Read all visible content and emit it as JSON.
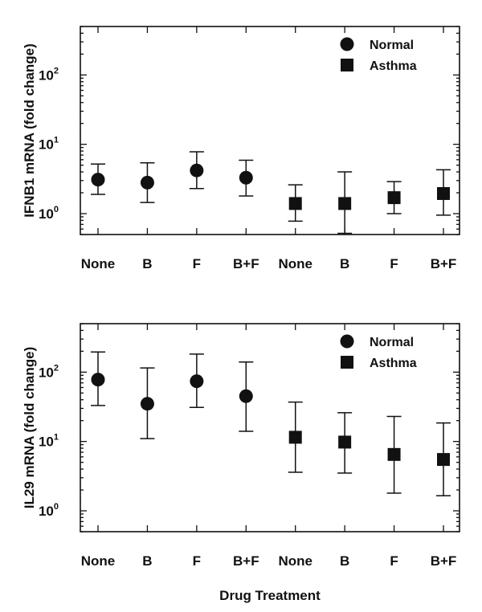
{
  "chart_data": [
    {
      "type": "scatter",
      "title": "",
      "ylabel": "IFNB1 mRNA (fold change)",
      "xlabel": "",
      "yscale": "log",
      "ylim": [
        0.5,
        500
      ],
      "yticks": [
        {
          "base": "10",
          "exp": "0"
        },
        {
          "base": "10",
          "exp": "1"
        },
        {
          "base": "10",
          "exp": "2"
        }
      ],
      "categories": [
        "None",
        "B",
        "F",
        "B+F",
        "None",
        "B",
        "F",
        "B+F"
      ],
      "legend": {
        "position": "top-right"
      },
      "series": [
        {
          "name": "Normal",
          "marker": "circle",
          "points": [
            {
              "x": 0,
              "y": 3.1,
              "lo": 1.9,
              "hi": 5.2
            },
            {
              "x": 1,
              "y": 2.8,
              "lo": 1.45,
              "hi": 5.4
            },
            {
              "x": 2,
              "y": 4.2,
              "lo": 2.3,
              "hi": 7.8
            },
            {
              "x": 3,
              "y": 3.3,
              "lo": 1.8,
              "hi": 5.9
            }
          ]
        },
        {
          "name": "Asthma",
          "marker": "square",
          "points": [
            {
              "x": 4,
              "y": 1.4,
              "lo": 0.78,
              "hi": 2.6
            },
            {
              "x": 5,
              "y": 1.4,
              "lo": 0.52,
              "hi": 4.0
            },
            {
              "x": 6,
              "y": 1.7,
              "lo": 1.0,
              "hi": 2.9
            },
            {
              "x": 7,
              "y": 1.95,
              "lo": 0.95,
              "hi": 4.3
            }
          ]
        }
      ]
    },
    {
      "type": "scatter",
      "title": "",
      "ylabel": "IL29 mRNA (fold change)",
      "xlabel": "Drug Treatment",
      "yscale": "log",
      "ylim": [
        0.5,
        500
      ],
      "yticks": [
        {
          "base": "10",
          "exp": "0"
        },
        {
          "base": "10",
          "exp": "1"
        },
        {
          "base": "10",
          "exp": "2"
        }
      ],
      "categories": [
        "None",
        "B",
        "F",
        "B+F",
        "None",
        "B",
        "F",
        "B+F"
      ],
      "legend": {
        "position": "top-right"
      },
      "series": [
        {
          "name": "Normal",
          "marker": "circle",
          "points": [
            {
              "x": 0,
              "y": 78,
              "lo": 33,
              "hi": 195
            },
            {
              "x": 1,
              "y": 35,
              "lo": 11,
              "hi": 115
            },
            {
              "x": 2,
              "y": 74,
              "lo": 31,
              "hi": 182
            },
            {
              "x": 3,
              "y": 45,
              "lo": 14,
              "hi": 140
            }
          ]
        },
        {
          "name": "Asthma",
          "marker": "square",
          "points": [
            {
              "x": 4,
              "y": 11.5,
              "lo": 3.6,
              "hi": 37
            },
            {
              "x": 5,
              "y": 9.8,
              "lo": 3.5,
              "hi": 26
            },
            {
              "x": 6,
              "y": 6.5,
              "lo": 1.8,
              "hi": 23
            },
            {
              "x": 7,
              "y": 5.5,
              "lo": 1.65,
              "hi": 18.5
            }
          ]
        }
      ]
    }
  ]
}
